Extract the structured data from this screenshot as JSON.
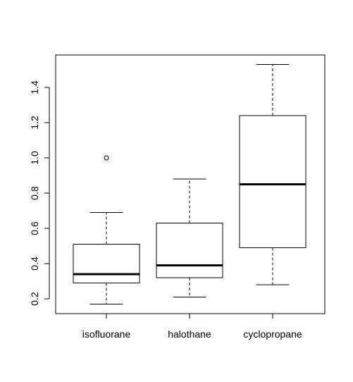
{
  "chart_data": {
    "type": "boxplot",
    "title": "",
    "xlabel": "",
    "ylabel": "",
    "categories": [
      "isofluorane",
      "halothane",
      "cyclopropane"
    ],
    "boxes": [
      {
        "name": "isofluorane",
        "whisker_low": 0.17,
        "q1": 0.29,
        "median": 0.34,
        "q3": 0.51,
        "whisker_high": 0.69,
        "outliers": [
          1.0
        ]
      },
      {
        "name": "halothane",
        "whisker_low": 0.21,
        "q1": 0.32,
        "median": 0.39,
        "q3": 0.63,
        "whisker_high": 0.88,
        "outliers": []
      },
      {
        "name": "cyclopropane",
        "whisker_low": 0.28,
        "q1": 0.49,
        "median": 0.85,
        "q3": 1.24,
        "whisker_high": 1.53,
        "outliers": []
      }
    ],
    "yticks": [
      0.2,
      0.4,
      0.6,
      0.8,
      1.0,
      1.2,
      1.4
    ],
    "ytick_labels": [
      "0.2",
      "0.4",
      "0.6",
      "0.8",
      "1.0",
      "1.2",
      "1.4"
    ],
    "ylim": [
      0.12,
      1.6
    ],
    "grid": false,
    "legend": "none"
  }
}
